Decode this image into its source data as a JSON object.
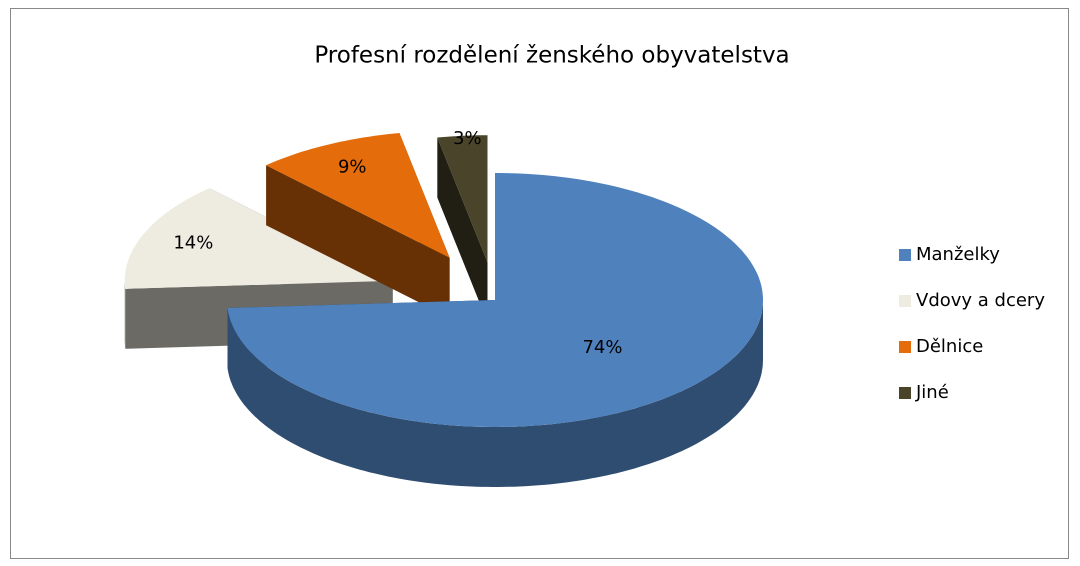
{
  "chart_data": {
    "type": "pie3d",
    "title": "Profesní rozdělení ženského obyvatelstva",
    "categories": [
      "Manželky",
      "Vdovy a dcery",
      "Dělnice",
      "Jiné"
    ],
    "values": [
      74,
      14,
      9,
      3
    ],
    "value_labels": [
      "74%",
      "14%",
      "9%",
      "3%"
    ],
    "colors": [
      "#4f81bd",
      "#eeece1",
      "#e46c0a",
      "#4a452a"
    ],
    "legend": "right"
  }
}
